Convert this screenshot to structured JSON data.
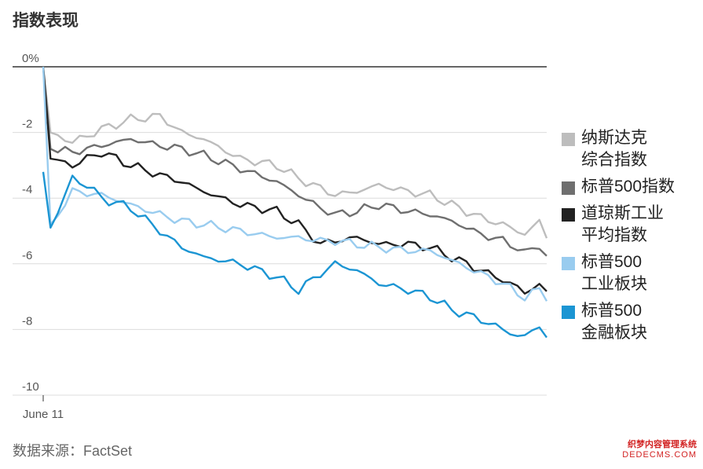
{
  "title": "指数表现",
  "source": "数据来源：FactSet",
  "watermark": {
    "line1": "织梦内容管理系统",
    "line2": "DEDECMS.COM"
  },
  "chart_data": {
    "type": "line",
    "ylim": [
      -10,
      0
    ],
    "yticks": [
      {
        "v": 0,
        "label": "0%"
      },
      {
        "v": -2,
        "label": "-2"
      },
      {
        "v": -4,
        "label": "-4"
      },
      {
        "v": -6,
        "label": "-6"
      },
      {
        "v": -8,
        "label": "-8"
      },
      {
        "v": -10,
        "label": "-10"
      }
    ],
    "xtick_label": "June 11",
    "grid": true,
    "legend": "right",
    "x_count": 70,
    "series": [
      {
        "name": "纳斯达克\n综合指数",
        "color": "#bdbdbd",
        "anchors": [
          [
            0,
            0
          ],
          [
            1,
            -2.0
          ],
          [
            4,
            -2.3
          ],
          [
            8,
            -1.9
          ],
          [
            12,
            -1.6
          ],
          [
            16,
            -1.5
          ],
          [
            19,
            -2.0
          ],
          [
            22,
            -2.2
          ],
          [
            27,
            -2.8
          ],
          [
            32,
            -3.0
          ],
          [
            35,
            -3.4
          ],
          [
            38,
            -3.7
          ],
          [
            40,
            -3.9
          ],
          [
            43,
            -3.8
          ],
          [
            46,
            -3.6
          ],
          [
            50,
            -3.8
          ],
          [
            53,
            -3.9
          ],
          [
            56,
            -4.2
          ],
          [
            60,
            -4.6
          ],
          [
            63,
            -4.8
          ],
          [
            65,
            -5.0
          ],
          [
            66,
            -5.1
          ],
          [
            68,
            -4.7
          ],
          [
            69,
            -5.2
          ]
        ]
      },
      {
        "name": "标普500指数",
        "color": "#6f6f6f",
        "anchors": [
          [
            0,
            0
          ],
          [
            1,
            -2.5
          ],
          [
            4,
            -2.6
          ],
          [
            8,
            -2.4
          ],
          [
            12,
            -2.2
          ],
          [
            16,
            -2.4
          ],
          [
            19,
            -2.5
          ],
          [
            22,
            -2.7
          ],
          [
            27,
            -3.1
          ],
          [
            32,
            -3.5
          ],
          [
            35,
            -3.9
          ],
          [
            38,
            -4.3
          ],
          [
            40,
            -4.5
          ],
          [
            43,
            -4.4
          ],
          [
            46,
            -4.2
          ],
          [
            50,
            -4.4
          ],
          [
            53,
            -4.5
          ],
          [
            56,
            -4.7
          ],
          [
            60,
            -5.1
          ],
          [
            63,
            -5.3
          ],
          [
            65,
            -5.5
          ],
          [
            66,
            -5.7
          ],
          [
            68,
            -5.4
          ],
          [
            69,
            -5.8
          ]
        ]
      },
      {
        "name": "道琼斯工业\n平均指数",
        "color": "#222222",
        "anchors": [
          [
            0,
            0
          ],
          [
            1,
            -2.8
          ],
          [
            4,
            -3.0
          ],
          [
            8,
            -2.6
          ],
          [
            12,
            -3.0
          ],
          [
            16,
            -3.3
          ],
          [
            19,
            -3.5
          ],
          [
            22,
            -3.8
          ],
          [
            27,
            -4.2
          ],
          [
            32,
            -4.4
          ],
          [
            35,
            -4.8
          ],
          [
            38,
            -5.4
          ],
          [
            40,
            -5.3
          ],
          [
            43,
            -5.2
          ],
          [
            46,
            -5.4
          ],
          [
            50,
            -5.4
          ],
          [
            53,
            -5.5
          ],
          [
            56,
            -5.8
          ],
          [
            60,
            -6.2
          ],
          [
            63,
            -6.5
          ],
          [
            65,
            -6.7
          ],
          [
            66,
            -6.9
          ],
          [
            68,
            -6.6
          ],
          [
            69,
            -6.9
          ]
        ]
      },
      {
        "name": "标普500\n工业板块",
        "color": "#99ccef",
        "anchors": [
          [
            0,
            0
          ],
          [
            1,
            -4.8
          ],
          [
            4,
            -3.8
          ],
          [
            8,
            -3.9
          ],
          [
            12,
            -4.2
          ],
          [
            16,
            -4.5
          ],
          [
            19,
            -4.7
          ],
          [
            22,
            -4.8
          ],
          [
            27,
            -5.0
          ],
          [
            32,
            -5.2
          ],
          [
            35,
            -5.2
          ],
          [
            38,
            -5.3
          ],
          [
            40,
            -5.3
          ],
          [
            43,
            -5.4
          ],
          [
            46,
            -5.5
          ],
          [
            50,
            -5.6
          ],
          [
            53,
            -5.6
          ],
          [
            56,
            -5.9
          ],
          [
            60,
            -6.3
          ],
          [
            63,
            -6.6
          ],
          [
            65,
            -6.9
          ],
          [
            66,
            -7.0
          ],
          [
            68,
            -6.8
          ],
          [
            69,
            -7.0
          ]
        ]
      },
      {
        "name": "标普500\n金融板块",
        "color": "#1b95d3",
        "anchors": [
          [
            0,
            -3.2
          ],
          [
            1,
            -4.9
          ],
          [
            4,
            -3.4
          ],
          [
            6,
            -3.6
          ],
          [
            8,
            -4.0
          ],
          [
            12,
            -4.3
          ],
          [
            16,
            -5.0
          ],
          [
            19,
            -5.5
          ],
          [
            22,
            -5.8
          ],
          [
            27,
            -6.0
          ],
          [
            32,
            -6.4
          ],
          [
            35,
            -6.8
          ],
          [
            38,
            -6.3
          ],
          [
            40,
            -6.0
          ],
          [
            43,
            -6.2
          ],
          [
            46,
            -6.6
          ],
          [
            50,
            -6.8
          ],
          [
            53,
            -7.0
          ],
          [
            56,
            -7.4
          ],
          [
            60,
            -7.7
          ],
          [
            63,
            -8.0
          ],
          [
            65,
            -8.2
          ],
          [
            66,
            -8.2
          ],
          [
            68,
            -7.9
          ],
          [
            69,
            -8.2
          ]
        ]
      }
    ]
  }
}
